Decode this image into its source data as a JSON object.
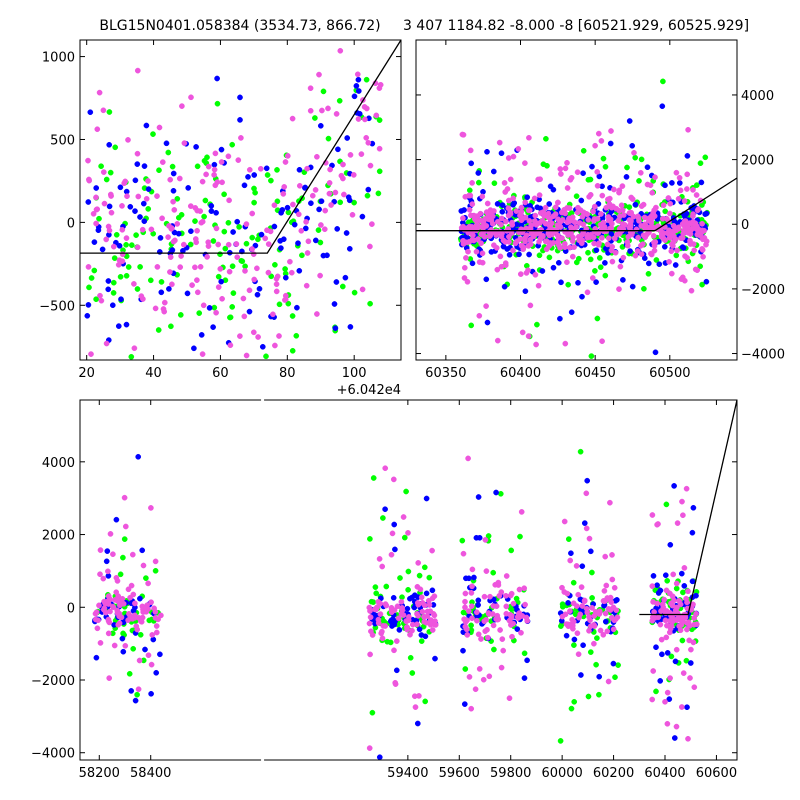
{
  "figure": {
    "title_left": "BLG15N0401.058384 (3534.73, 866.72)",
    "title_right": "3 407 1184.82 -8.000 -8 [60521.929, 60525.929]"
  },
  "colors": {
    "green": "#00ff00",
    "blue": "#0000ff",
    "pink": "#ee55dd",
    "model_line": "#000000"
  },
  "chart_data": [
    {
      "type": "scatter",
      "panel": "top-left",
      "title": "BLG15N0401.058384 (3534.73, 866.72)",
      "x_offset_label": "+6.042e4",
      "xlim": [
        18,
        114
      ],
      "ylim": [
        -830,
        1100
      ],
      "xticks": [
        "20",
        "40",
        "60",
        "80",
        "100"
      ],
      "yticks": [
        "−500",
        "0",
        "500",
        "1000"
      ],
      "ytick_values": [
        -500,
        0,
        500,
        1000
      ],
      "xtick_values": [
        20,
        40,
        60,
        80,
        100
      ],
      "y_axis_side": "left",
      "series_colors": [
        "green",
        "blue",
        "pink"
      ],
      "points_per_series": [
        150,
        150,
        220
      ],
      "model_line": [
        [
          18,
          -185
        ],
        [
          74,
          -185
        ],
        [
          114,
          1100
        ]
      ]
    },
    {
      "type": "scatter",
      "panel": "top-right",
      "title": "3 407 1184.82 -8.000 -8 [60521.929, 60525.929]",
      "xlim": [
        60330,
        60545
      ],
      "ylim": [
        -4200,
        5700
      ],
      "xticks": [
        "60350",
        "60400",
        "60450",
        "60500"
      ],
      "xtick_values": [
        60350,
        60400,
        60450,
        60500
      ],
      "yticks": [
        "−4000",
        "−2000",
        "0",
        "2000",
        "4000"
      ],
      "ytick_values": [
        -4000,
        -2000,
        0,
        2000,
        4000
      ],
      "y_axis_side": "right",
      "series_colors": [
        "green",
        "blue",
        "pink"
      ],
      "points_per_series": [
        350,
        350,
        550
      ],
      "model_line": [
        [
          60330,
          -200
        ],
        [
          60490,
          -200
        ],
        [
          60545,
          1430
        ]
      ]
    },
    {
      "type": "scatter",
      "panel": "bottom",
      "xlim": [
        58125,
        60680
      ],
      "ylim": [
        -4200,
        5700
      ],
      "xticks": [
        "58200",
        "58400",
        "59400",
        "59600",
        "59800",
        "60000",
        "60200",
        "60400",
        "60600"
      ],
      "xtick_values": [
        58200,
        58400,
        59400,
        59600,
        59800,
        60000,
        60200,
        60400,
        60600
      ],
      "yticks": [
        "−4000",
        "−2000",
        "0",
        "2000",
        "4000"
      ],
      "ytick_values": [
        -4000,
        -2000,
        0,
        2000,
        4000
      ],
      "y_axis_side": "left",
      "x_axis_break": [
        58420,
        59250
      ],
      "seasons": [
        {
          "start": 58180,
          "end": 58440
        },
        {
          "start": 59250,
          "end": 59510
        },
        {
          "start": 59610,
          "end": 59870
        },
        {
          "start": 59990,
          "end": 60220
        },
        {
          "start": 60350,
          "end": 60525
        }
      ],
      "series_colors": [
        "green",
        "blue",
        "pink"
      ],
      "points_per_series": [
        250,
        250,
        450
      ],
      "model_line": [
        [
          60300,
          -200
        ],
        [
          60490,
          -200
        ],
        [
          60680,
          5700
        ]
      ]
    }
  ]
}
